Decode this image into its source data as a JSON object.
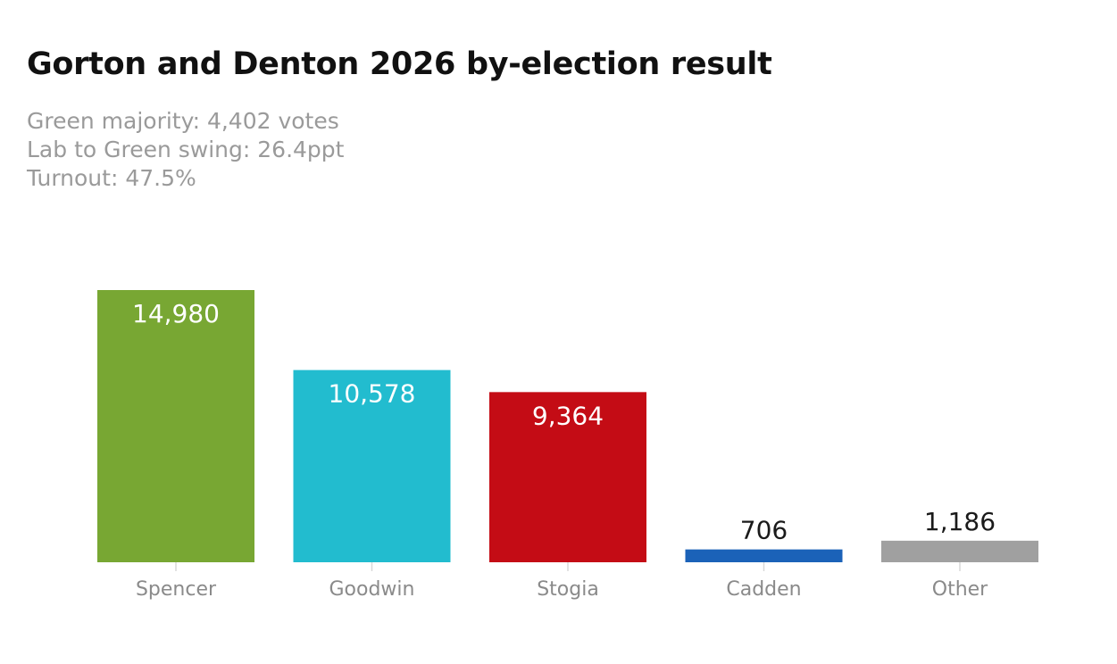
{
  "title": "Gorton and Denton 2026 by-election result",
  "subtitle": {
    "majority": "Green majority: 4,402 votes",
    "swing": "Lab to Green swing: 26.4ppt",
    "turnout": "Turnout: 47.5%"
  },
  "chart_data": {
    "type": "bar",
    "title": "Gorton and Denton 2026 by-election result",
    "xlabel": "",
    "ylabel": "",
    "grid": false,
    "categories": [
      "Spencer",
      "Goodwin",
      "Stogia",
      "Cadden",
      "Other"
    ],
    "values": [
      14980,
      10578,
      9364,
      706,
      1186
    ],
    "value_labels": [
      "14,980",
      "10,578",
      "9,364",
      "706",
      "1,186"
    ],
    "colors": [
      "#78a733",
      "#22bccf",
      "#c40c15",
      "#1b62b8",
      "#a0a0a0"
    ],
    "ylim": [
      0,
      14980
    ]
  }
}
